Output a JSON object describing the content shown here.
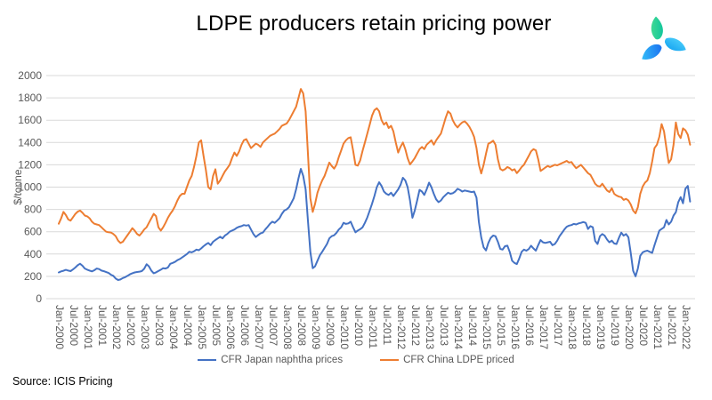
{
  "title": "LDPE producers retain pricing power",
  "source": "Source: ICIS Pricing",
  "logo": {
    "name": "ICIS pinwheel logo",
    "petal_colors": [
      "#3ad88b",
      "#2fc2f8",
      "#1f7df2"
    ]
  },
  "chart_data": {
    "type": "line",
    "title": "LDPE producers retain pricing power",
    "xlabel": "",
    "ylabel": "$/tonne",
    "ylim": [
      0,
      2000
    ],
    "y_ticks": [
      0,
      200,
      400,
      600,
      800,
      1000,
      1200,
      1400,
      1600,
      1800,
      2000
    ],
    "grid": "horizontal-only",
    "gridline_color": "#d9d9d9",
    "tick_label_color": "#595959",
    "legend_position": "bottom",
    "frequency": "monthly",
    "x_start": "Jan-2000",
    "x_end": "Mar-2022",
    "x_tick_labels": [
      "Jan-2000",
      "Jul-2000",
      "Jan-2001",
      "Jul-2001",
      "Jan-2002",
      "Jul-2002",
      "Jan-2003",
      "Jul-2003",
      "Jan-2004",
      "Jul-2004",
      "Jan-2005",
      "Jul-2005",
      "Jan-2006",
      "Jul-2006",
      "Jan-2007",
      "Jul-2007",
      "Jan-2008",
      "Jul-2008",
      "Jan-2009",
      "Jul-2009",
      "Jan-2010",
      "Jul-2010",
      "Jan-2011",
      "Jul-2011",
      "Jan-2012",
      "Jul-2012",
      "Jan-2013",
      "Jul-2013",
      "Jan-2014",
      "Jul-2014",
      "Jan-2015",
      "Jul-2015",
      "Jan-2016",
      "Jul-2016",
      "Jan-2017",
      "Jul-2017",
      "Jan-2018",
      "Jul-2018",
      "Jan-2019",
      "Jul-2019",
      "Jan-2020",
      "Jul-2020",
      "Jan-2021",
      "Jul-2021",
      "Jan-2022"
    ],
    "series": [
      {
        "name": "CFR Japan naphtha prices",
        "color": "#4472C4",
        "values": [
          235,
          245,
          250,
          258,
          252,
          247,
          262,
          280,
          300,
          313,
          295,
          270,
          260,
          252,
          245,
          255,
          270,
          265,
          252,
          246,
          238,
          230,
          214,
          205,
          180,
          167,
          172,
          185,
          193,
          205,
          218,
          228,
          235,
          239,
          242,
          247,
          268,
          308,
          290,
          252,
          228,
          236,
          248,
          260,
          273,
          270,
          280,
          312,
          320,
          330,
          345,
          355,
          370,
          385,
          400,
          421,
          415,
          425,
          440,
          434,
          450,
          470,
          487,
          500,
          480,
          510,
          526,
          540,
          555,
          540,
          566,
          580,
          600,
          610,
          620,
          635,
          645,
          650,
          660,
          655,
          660,
          620,
          580,
          553,
          570,
          585,
          593,
          620,
          645,
          672,
          690,
          680,
          700,
          720,
          760,
          790,
          800,
          820,
          860,
          900,
          980,
          1080,
          1163,
          1100,
          980,
          700,
          420,
          273,
          290,
          340,
          390,
          420,
          455,
          490,
          540,
          560,
          568,
          590,
          620,
          640,
          680,
          670,
          675,
          690,
          640,
          595,
          610,
          622,
          640,
          680,
          728,
          790,
          850,
          920,
          1000,
          1044,
          1010,
          960,
          940,
          930,
          950,
          920,
          950,
          980,
          1020,
          1084,
          1060,
          1000,
          880,
          725,
          790,
          880,
          975,
          960,
          930,
          980,
          1040,
          1000,
          940,
          890,
          865,
          880,
          910,
          930,
          950,
          940,
          945,
          960,
          985,
          975,
          960,
          970,
          965,
          960,
          955,
          960,
          905,
          685,
          550,
          460,
          433,
          500,
          545,
          566,
          560,
          510,
          446,
          440,
          470,
          475,
          420,
          340,
          320,
          310,
          360,
          420,
          440,
          430,
          445,
          475,
          450,
          430,
          480,
          525,
          505,
          500,
          505,
          510,
          480,
          490,
          520,
          560,
          590,
          620,
          645,
          655,
          660,
          670,
          665,
          675,
          680,
          687,
          680,
          625,
          650,
          640,
          518,
          490,
          560,
          579,
          565,
          530,
          505,
          520,
          495,
          490,
          545,
          592,
          565,
          579,
          550,
          410,
          250,
          200,
          270,
          385,
          415,
          425,
          430,
          420,
          410,
          480,
          545,
          610,
          625,
          640,
          705,
          665,
          690,
          745,
          775,
          865,
          910,
          855,
          985,
          1010,
          870
        ]
      },
      {
        "name": "CFR China LDPE priced",
        "color": "#ED7D31",
        "values": [
          672,
          720,
          778,
          750,
          710,
          700,
          730,
          760,
          780,
          790,
          770,
          745,
          738,
          720,
          690,
          672,
          665,
          660,
          640,
          619,
          600,
          595,
          593,
          580,
          560,
          520,
          500,
          510,
          540,
          570,
          600,
          632,
          610,
          580,
          566,
          590,
          620,
          640,
          680,
          720,
          760,
          740,
          640,
          610,
          640,
          680,
          725,
          760,
          790,
          830,
          880,
          920,
          940,
          940,
          1000,
          1060,
          1100,
          1180,
          1280,
          1400,
          1420,
          1280,
          1150,
          1000,
          980,
          1100,
          1160,
          1030,
          1060,
          1100,
          1140,
          1170,
          1200,
          1260,
          1310,
          1280,
          1320,
          1380,
          1420,
          1430,
          1390,
          1350,
          1370,
          1390,
          1380,
          1360,
          1400,
          1420,
          1440,
          1460,
          1470,
          1480,
          1500,
          1520,
          1550,
          1560,
          1570,
          1600,
          1640,
          1680,
          1720,
          1800,
          1880,
          1840,
          1680,
          1300,
          900,
          778,
          850,
          950,
          1010,
          1060,
          1100,
          1160,
          1220,
          1190,
          1166,
          1200,
          1270,
          1330,
          1390,
          1420,
          1440,
          1447,
          1330,
          1200,
          1193,
          1240,
          1326,
          1400,
          1480,
          1560,
          1640,
          1690,
          1707,
          1680,
          1600,
          1560,
          1580,
          1530,
          1550,
          1500,
          1400,
          1310,
          1360,
          1400,
          1340,
          1260,
          1203,
          1230,
          1260,
          1300,
          1340,
          1360,
          1340,
          1380,
          1400,
          1420,
          1380,
          1420,
          1450,
          1480,
          1550,
          1620,
          1680,
          1660,
          1600,
          1560,
          1535,
          1560,
          1580,
          1590,
          1570,
          1540,
          1500,
          1450,
          1350,
          1200,
          1123,
          1200,
          1300,
          1390,
          1400,
          1416,
          1380,
          1250,
          1163,
          1150,
          1160,
          1180,
          1170,
          1150,
          1160,
          1125,
          1150,
          1180,
          1200,
          1240,
          1280,
          1320,
          1340,
          1330,
          1250,
          1145,
          1160,
          1175,
          1190,
          1180,
          1190,
          1200,
          1195,
          1205,
          1215,
          1225,
          1235,
          1220,
          1225,
          1195,
          1170,
          1185,
          1200,
          1175,
          1150,
          1125,
          1110,
          1070,
          1030,
          1010,
          1005,
          1030,
          1000,
          970,
          955,
          990,
          940,
          925,
          915,
          910,
          885,
          895,
          880,
          845,
          790,
          765,
          820,
          940,
          1005,
          1040,
          1060,
          1125,
          1230,
          1350,
          1380,
          1450,
          1565,
          1500,
          1350,
          1216,
          1250,
          1380,
          1580,
          1475,
          1440,
          1527,
          1510,
          1470,
          1380
        ]
      }
    ]
  }
}
